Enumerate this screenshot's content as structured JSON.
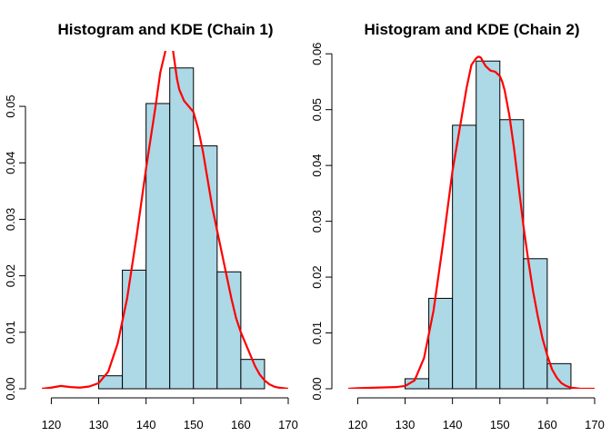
{
  "colors": {
    "bar_fill": "#ADD8E6",
    "bar_edge": "#000000",
    "kde": "#FF0000"
  },
  "chart_data": [
    {
      "type": "bar",
      "title": "Histogram and KDE (Chain 1)",
      "xlabel": "",
      "ylabel": "",
      "xlim": [
        118,
        170
      ],
      "ylim": [
        0,
        0.0595
      ],
      "x_ticks": [
        120,
        130,
        140,
        150,
        160,
        170
      ],
      "y_ticks": [
        0.0,
        0.01,
        0.02,
        0.03,
        0.04,
        0.05
      ],
      "y_tick_labels": [
        "0.00",
        "0.01",
        "0.02",
        "0.03",
        "0.04",
        "0.05"
      ],
      "bin_edges": [
        130,
        135,
        140,
        145,
        150,
        155,
        160,
        165
      ],
      "values": [
        0.0023,
        0.021,
        0.0505,
        0.0568,
        0.043,
        0.0207,
        0.0052
      ],
      "kde": {
        "x": [
          118,
          120,
          122,
          124,
          126,
          128,
          130,
          132,
          134,
          136,
          138,
          140,
          142,
          143,
          144,
          144.5,
          145,
          145.5,
          146,
          146.5,
          147,
          148,
          149,
          150,
          151,
          152,
          153,
          154,
          155,
          156,
          157,
          158,
          159,
          160,
          161,
          162,
          163,
          164,
          165,
          166,
          167,
          168,
          169,
          170
        ],
        "y": [
          0.0,
          0.0002,
          0.0005,
          0.0003,
          0.0002,
          0.0004,
          0.001,
          0.003,
          0.008,
          0.016,
          0.027,
          0.039,
          0.05,
          0.056,
          0.0595,
          0.062,
          0.0625,
          0.061,
          0.058,
          0.055,
          0.053,
          0.051,
          0.05,
          0.049,
          0.046,
          0.042,
          0.037,
          0.032,
          0.028,
          0.024,
          0.02,
          0.016,
          0.0125,
          0.01,
          0.008,
          0.006,
          0.004,
          0.0025,
          0.0015,
          0.0008,
          0.0004,
          0.0002,
          0.0001,
          0.0
        ]
      }
    },
    {
      "type": "bar",
      "title": "Histogram and KDE (Chain 2)",
      "xlabel": "",
      "ylabel": "",
      "xlim": [
        118,
        170
      ],
      "ylim": [
        0,
        0.0602
      ],
      "x_ticks": [
        120,
        130,
        140,
        150,
        160,
        170
      ],
      "y_ticks": [
        0.0,
        0.01,
        0.02,
        0.03,
        0.04,
        0.05,
        0.06
      ],
      "y_tick_labels": [
        "0.00",
        "0.01",
        "0.02",
        "0.03",
        "0.04",
        "0.05",
        "0.06"
      ],
      "bin_edges": [
        130,
        135,
        140,
        145,
        150,
        155,
        160,
        165
      ],
      "values": [
        0.0018,
        0.0162,
        0.0472,
        0.0587,
        0.0482,
        0.0233,
        0.0045
      ],
      "kde": {
        "x": [
          118,
          120,
          124,
          128,
          130,
          132,
          134,
          136,
          138,
          140,
          142,
          143,
          144,
          145,
          145.5,
          146,
          146.5,
          147,
          148,
          149,
          150,
          150.5,
          151,
          152,
          153,
          154,
          155,
          156,
          157,
          158,
          159,
          160,
          161,
          162,
          163,
          164,
          165,
          166,
          167,
          168,
          170
        ],
        "y": [
          0.0,
          0.0001,
          0.0002,
          0.0003,
          0.0005,
          0.0015,
          0.0055,
          0.014,
          0.026,
          0.039,
          0.049,
          0.054,
          0.058,
          0.0592,
          0.0595,
          0.0593,
          0.0585,
          0.0578,
          0.057,
          0.0568,
          0.056,
          0.055,
          0.0535,
          0.049,
          0.043,
          0.036,
          0.029,
          0.023,
          0.0175,
          0.013,
          0.009,
          0.006,
          0.0035,
          0.002,
          0.001,
          0.0005,
          0.0002,
          0.0001,
          0.0,
          0.0,
          0.0
        ]
      }
    }
  ]
}
